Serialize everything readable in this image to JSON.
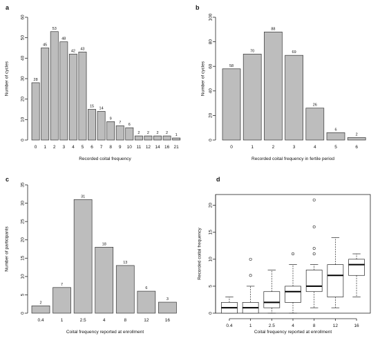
{
  "figure": {
    "background": "#ffffff",
    "bar_color": "#bdbdbd",
    "edge_color": "#333333"
  },
  "chart_data": [
    {
      "type": "bar",
      "panel": "a",
      "categories": [
        "0",
        "1",
        "2",
        "3",
        "4",
        "5",
        "6",
        "7",
        "8",
        "9",
        "10",
        "11",
        "12",
        "14",
        "16",
        "21"
      ],
      "values": [
        28,
        45,
        53,
        48,
        42,
        43,
        15,
        14,
        9,
        7,
        6,
        2,
        2,
        2,
        2,
        1
      ],
      "data_labels": [
        "28",
        "45",
        "53",
        "48",
        "42",
        "43",
        "15",
        "14",
        "9",
        "7",
        "6",
        "2",
        "2",
        "2",
        "2",
        "1"
      ],
      "xlabel": "Recorded coital frequency",
      "ylabel": "Number of cycles",
      "ylim": [
        0,
        60
      ],
      "yticks": [
        "0",
        "10",
        "20",
        "30",
        "40",
        "50",
        "60"
      ],
      "grid": false
    },
    {
      "type": "bar",
      "panel": "b",
      "categories": [
        "0",
        "1",
        "2",
        "3",
        "4",
        "5",
        "6"
      ],
      "values": [
        58,
        70,
        88,
        69,
        26,
        6,
        2
      ],
      "data_labels": [
        "58",
        "70",
        "88",
        "69",
        "26",
        "6",
        "2"
      ],
      "xlabel": "Recorded coital frequency in fertile period",
      "ylabel": "Number of cycles",
      "ylim": [
        0,
        100
      ],
      "yticks": [
        "0",
        "20",
        "40",
        "60",
        "80",
        "100"
      ],
      "grid": false
    },
    {
      "type": "bar",
      "panel": "c",
      "categories": [
        "0.4",
        "1",
        "2.5",
        "4",
        "8",
        "12",
        "16"
      ],
      "values": [
        2,
        7,
        31,
        18,
        13,
        6,
        3
      ],
      "data_labels": [
        "2",
        "7",
        "31",
        "18",
        "13",
        "6",
        "3"
      ],
      "xlabel": "Coital frequency reported at enrollment",
      "ylabel": "Number of participants",
      "ylim": [
        0,
        35
      ],
      "yticks": [
        "0",
        "5",
        "10",
        "15",
        "20",
        "25",
        "30",
        "35"
      ],
      "grid": false
    },
    {
      "type": "box",
      "panel": "d",
      "categories": [
        "0.4",
        "1",
        "2.5",
        "4",
        "8",
        "12",
        "16"
      ],
      "boxes": [
        {
          "whislo": 0,
          "q1": 0,
          "med": 1,
          "q3": 2,
          "whishi": 3,
          "fliers": []
        },
        {
          "whislo": 0,
          "q1": 0,
          "med": 1,
          "q3": 2,
          "whishi": 5,
          "fliers": [
            7,
            10
          ]
        },
        {
          "whislo": 0,
          "q1": 1,
          "med": 2,
          "q3": 4,
          "whishi": 8,
          "fliers": []
        },
        {
          "whislo": 0,
          "q1": 2,
          "med": 4,
          "q3": 5,
          "whishi": 9,
          "fliers": [
            11
          ]
        },
        {
          "whislo": 1,
          "q1": 4,
          "med": 5,
          "q3": 8,
          "whishi": 9,
          "fliers": [
            11,
            12,
            16,
            21
          ]
        },
        {
          "whislo": 1,
          "q1": 3,
          "med": 7,
          "q3": 9,
          "whishi": 14,
          "fliers": []
        },
        {
          "whislo": 3,
          "q1": 7,
          "med": 9,
          "q3": 10,
          "whishi": 11,
          "fliers": []
        }
      ],
      "xlabel": "Coital frequency reported at enrollment",
      "ylabel": "Recorded coital frequency",
      "ylim": [
        0,
        22
      ],
      "yticks": [
        "0",
        "5",
        "10",
        "15",
        "20"
      ],
      "grid": false
    }
  ]
}
